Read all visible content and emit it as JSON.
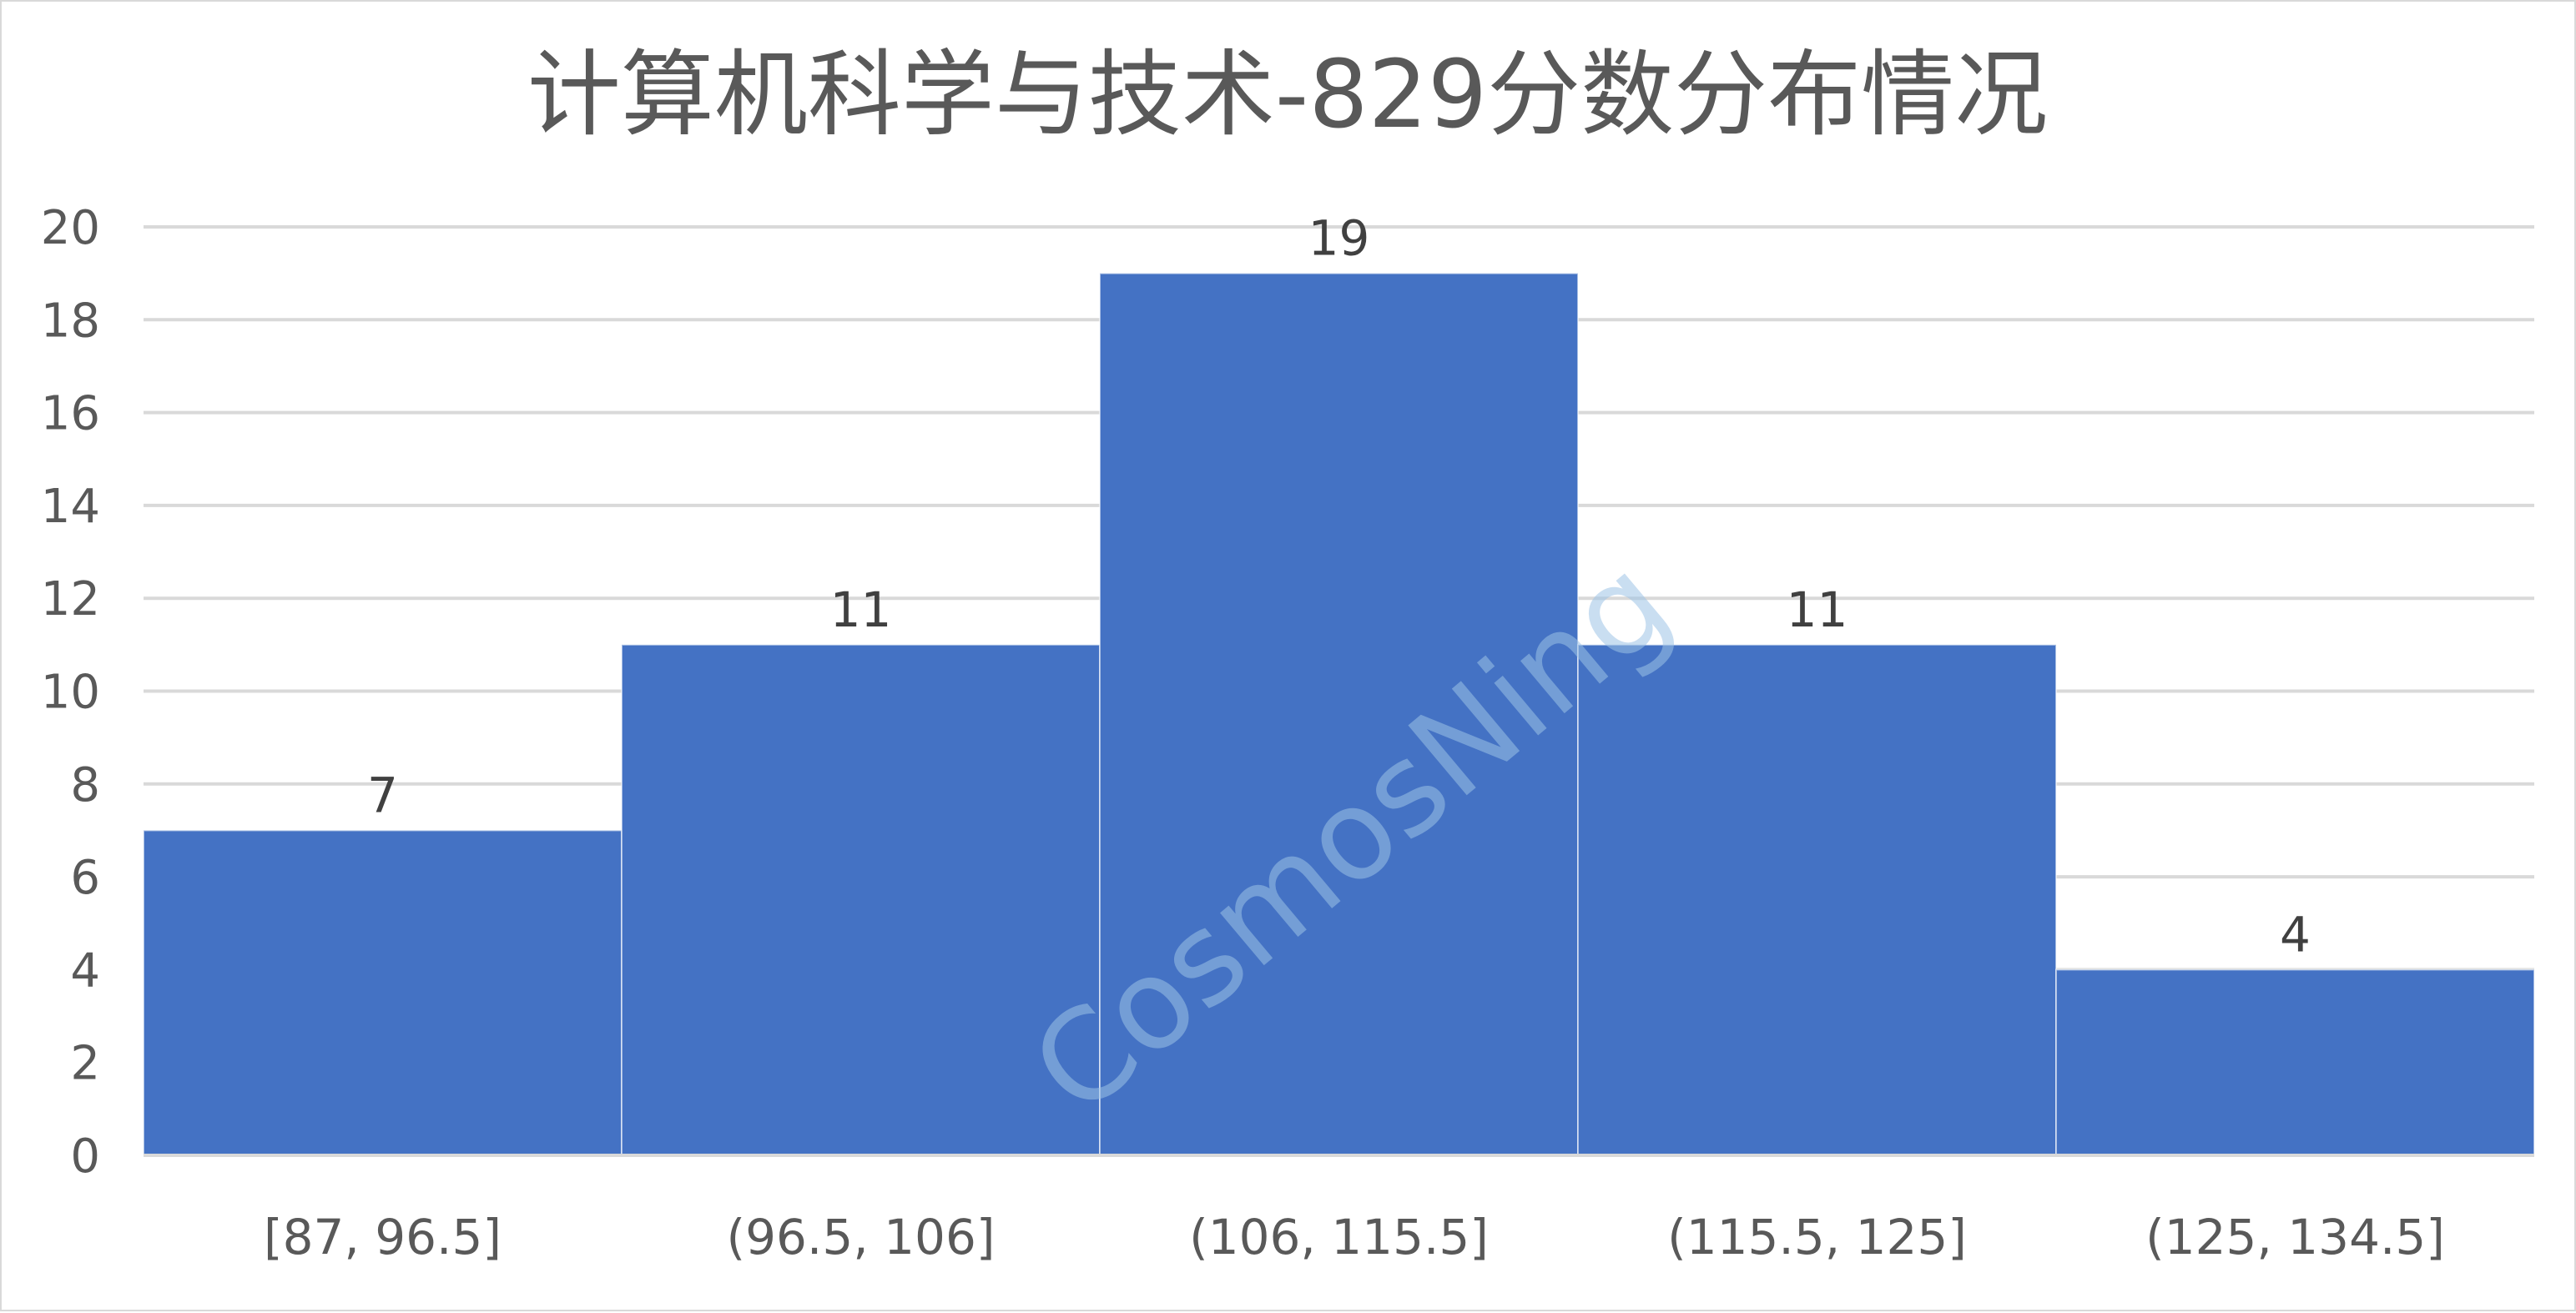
{
  "chart_data": {
    "type": "bar",
    "title": "计算机科学与技术-829分数分布情况",
    "xlabel": "",
    "ylabel": "",
    "categories": [
      "[87, 96.5]",
      "(96.5, 106]",
      "(106, 115.5]",
      "(115.5, 125]",
      "(125, 134.5]"
    ],
    "values": [
      7,
      11,
      19,
      11,
      4
    ],
    "ylim": [
      0,
      20
    ],
    "yticks": [
      0,
      2,
      4,
      6,
      8,
      10,
      12,
      14,
      16,
      18,
      20
    ],
    "grid": true,
    "data_labels": true,
    "bar_color": "#4472c4",
    "watermark": "CosmosNing"
  }
}
